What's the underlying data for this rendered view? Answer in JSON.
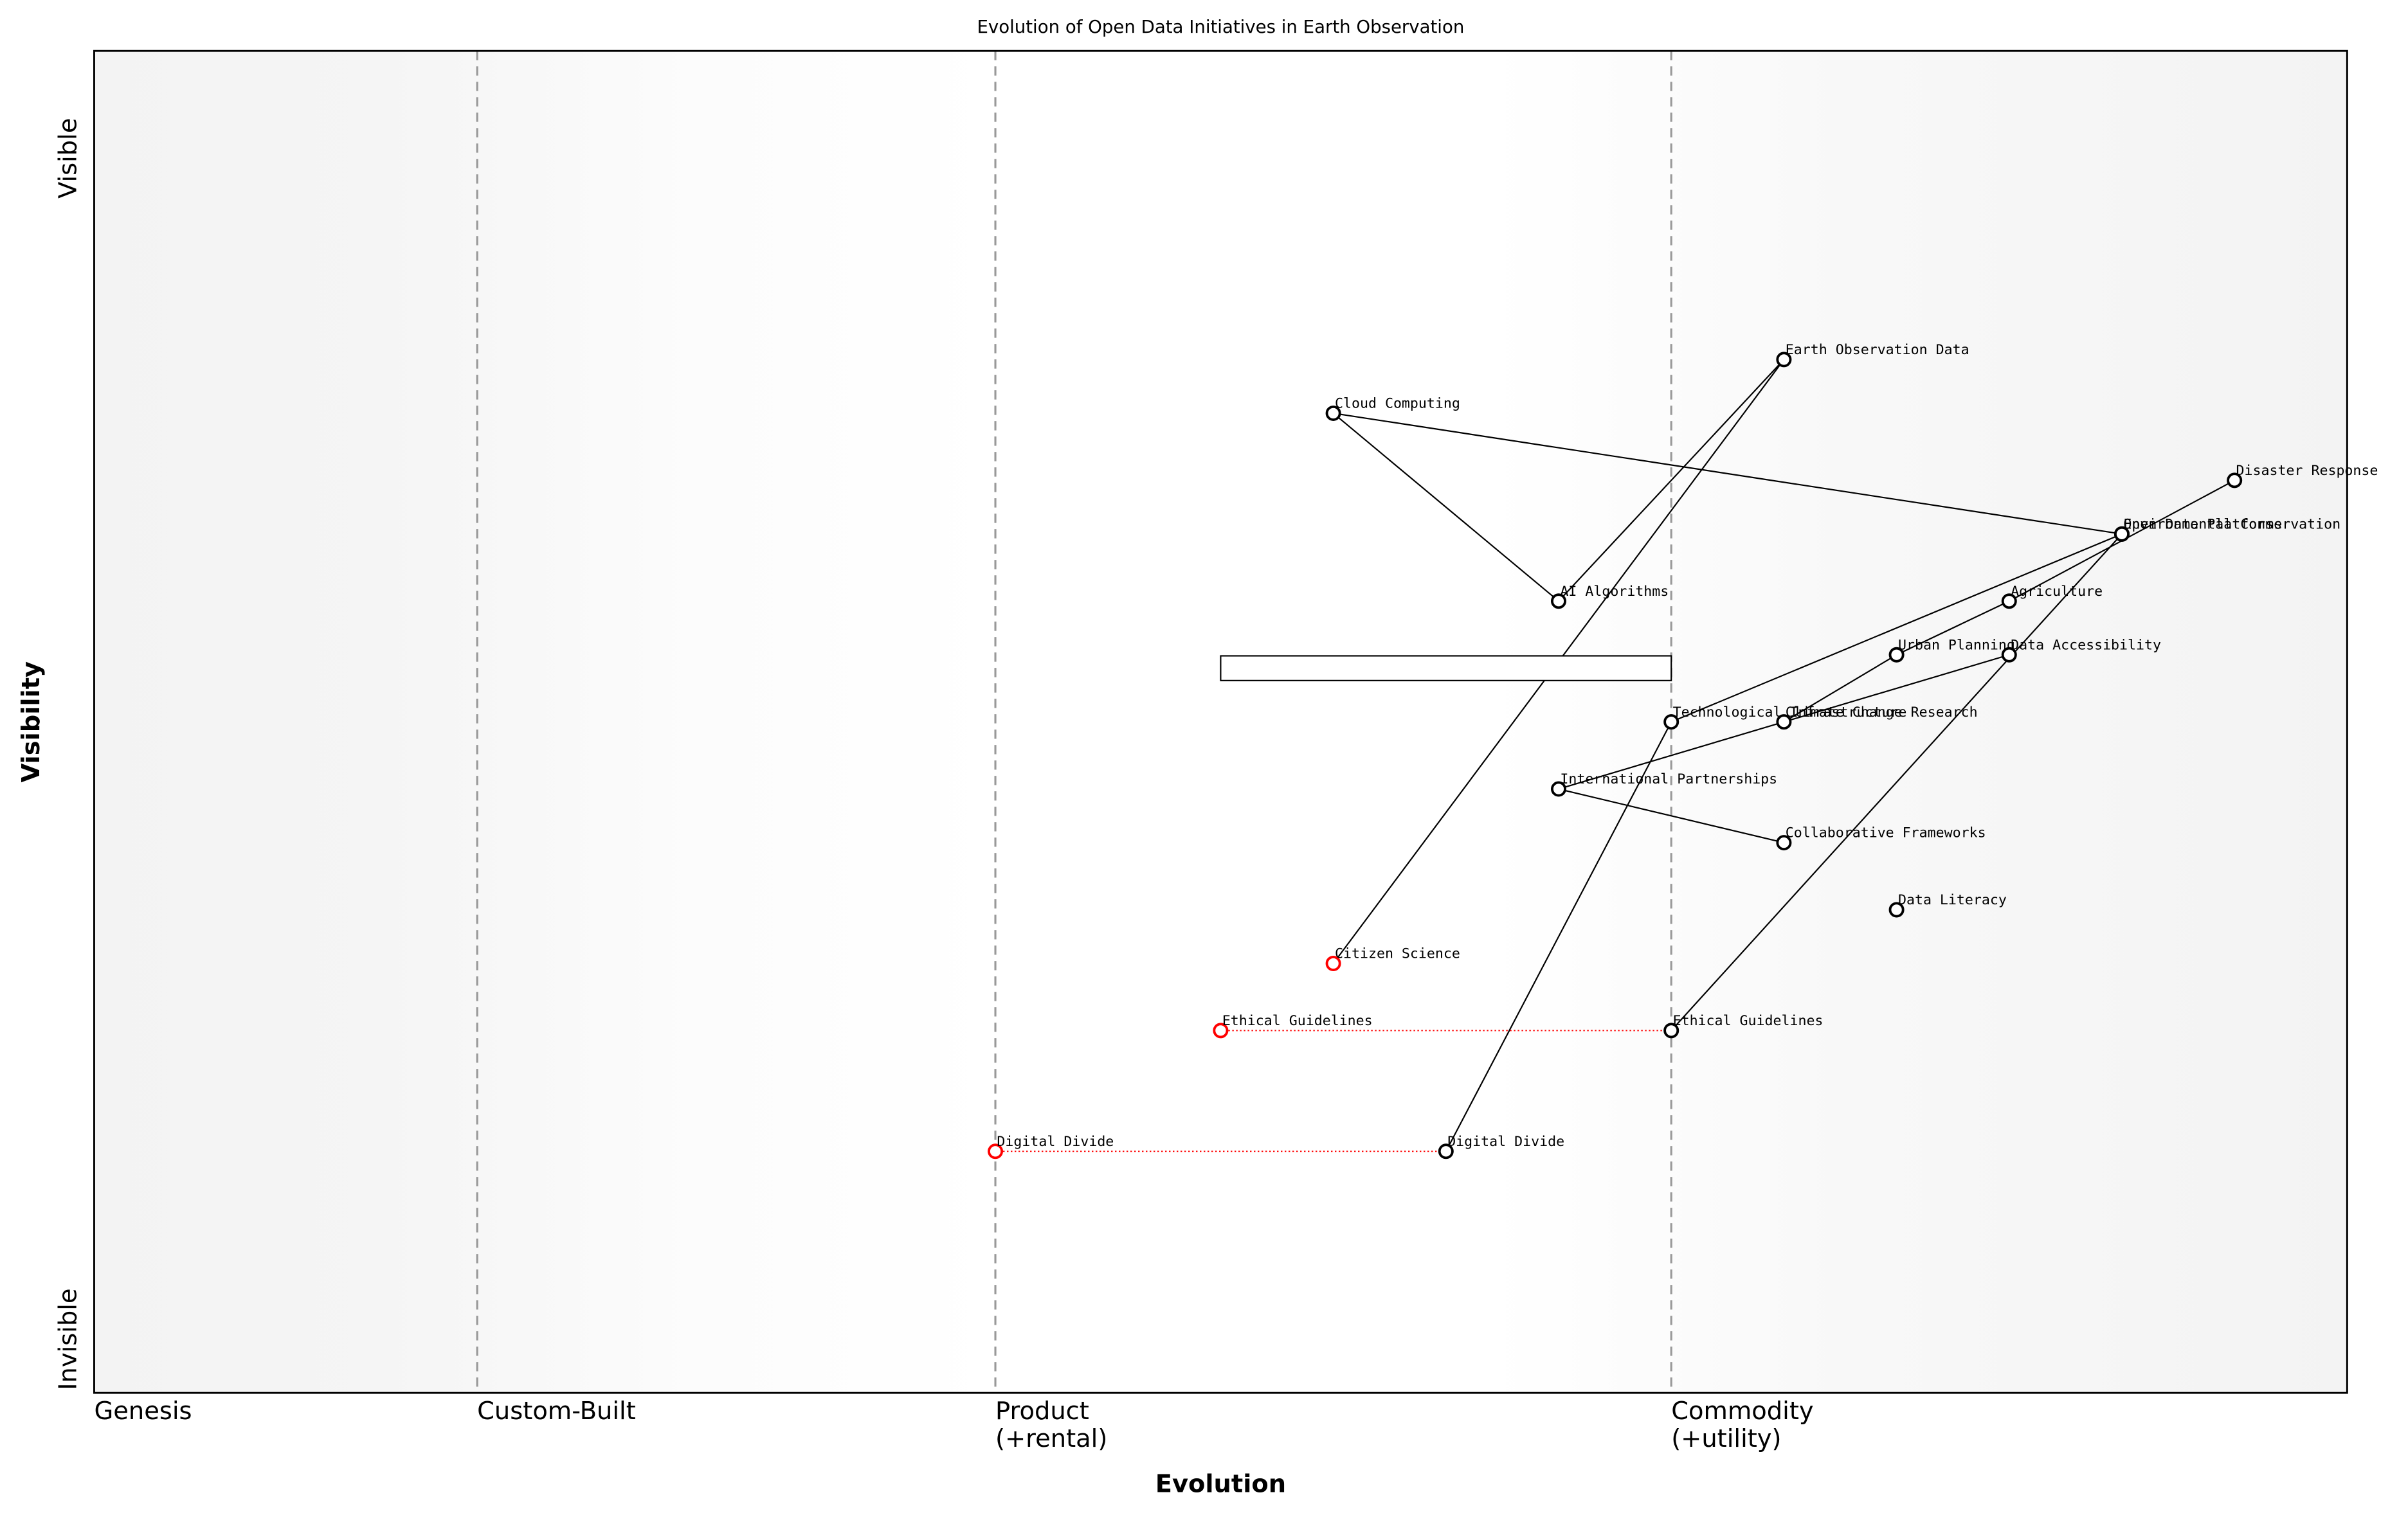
{
  "chart_data": {
    "type": "wardley",
    "title": "Evolution of Open Data Initiatives in Earth Observation",
    "xlabel": "Evolution",
    "ylabel": "Visibility",
    "xlim": [
      0,
      1
    ],
    "ylim": [
      0,
      1
    ],
    "xticks": [
      {
        "value": 0,
        "label": "Genesis"
      },
      {
        "value": 0.17,
        "label": "Custom-Built"
      },
      {
        "value": 0.4,
        "label": "Product\n(+rental)"
      },
      {
        "value": 0.7,
        "label": "Commodity\n(+utility)"
      }
    ],
    "yticks": [
      {
        "value": 0.04,
        "label": "Invisible"
      },
      {
        "value": 0.92,
        "label": "Visible"
      }
    ],
    "components": [
      {
        "name": "Earth Observation Data",
        "evolution": 0.75,
        "visibility": 0.77,
        "color": "black"
      },
      {
        "name": "Cloud Computing",
        "evolution": 0.55,
        "visibility": 0.73,
        "color": "black"
      },
      {
        "name": "Disaster Response",
        "evolution": 0.95,
        "visibility": 0.68,
        "color": "black"
      },
      {
        "name": "Open Data Platforms",
        "evolution": 0.9,
        "visibility": 0.64,
        "color": "black"
      },
      {
        "name": "Environmental Conservation",
        "evolution": 0.9,
        "visibility": 0.64,
        "color": "black"
      },
      {
        "name": "AI Algorithms",
        "evolution": 0.65,
        "visibility": 0.59,
        "color": "black"
      },
      {
        "name": "Agriculture",
        "evolution": 0.85,
        "visibility": 0.59,
        "color": "black"
      },
      {
        "name": "Urban Planning",
        "evolution": 0.8,
        "visibility": 0.55,
        "color": "black"
      },
      {
        "name": "Data Accessibility",
        "evolution": 0.85,
        "visibility": 0.55,
        "color": "black"
      },
      {
        "name": "Technological Infrastructure",
        "evolution": 0.7,
        "visibility": 0.5,
        "color": "black"
      },
      {
        "name": "Climate Change Research",
        "evolution": 0.75,
        "visibility": 0.5,
        "color": "black"
      },
      {
        "name": "International Partnerships",
        "evolution": 0.65,
        "visibility": 0.45,
        "color": "black"
      },
      {
        "name": "Collaborative Frameworks",
        "evolution": 0.75,
        "visibility": 0.41,
        "color": "black"
      },
      {
        "name": "Data Literacy",
        "evolution": 0.8,
        "visibility": 0.36,
        "color": "black"
      },
      {
        "name": "Citizen Science",
        "evolution": 0.55,
        "visibility": 0.32,
        "color": "red"
      },
      {
        "name": "Ethical Guidelines",
        "evolution": 0.7,
        "visibility": 0.27,
        "color": "black"
      },
      {
        "name": "Digital Divide",
        "evolution": 0.6,
        "visibility": 0.18,
        "color": "black"
      },
      {
        "name": "Ethical Guidelines",
        "evolution": 0.5,
        "visibility": 0.27,
        "color": "red"
      },
      {
        "name": "Digital Divide",
        "evolution": 0.4,
        "visibility": 0.18,
        "color": "red"
      }
    ],
    "pipelines": [
      {
        "evolution_start": 0.5,
        "evolution_end": 0.7,
        "visibility": 0.54
      }
    ]
  }
}
